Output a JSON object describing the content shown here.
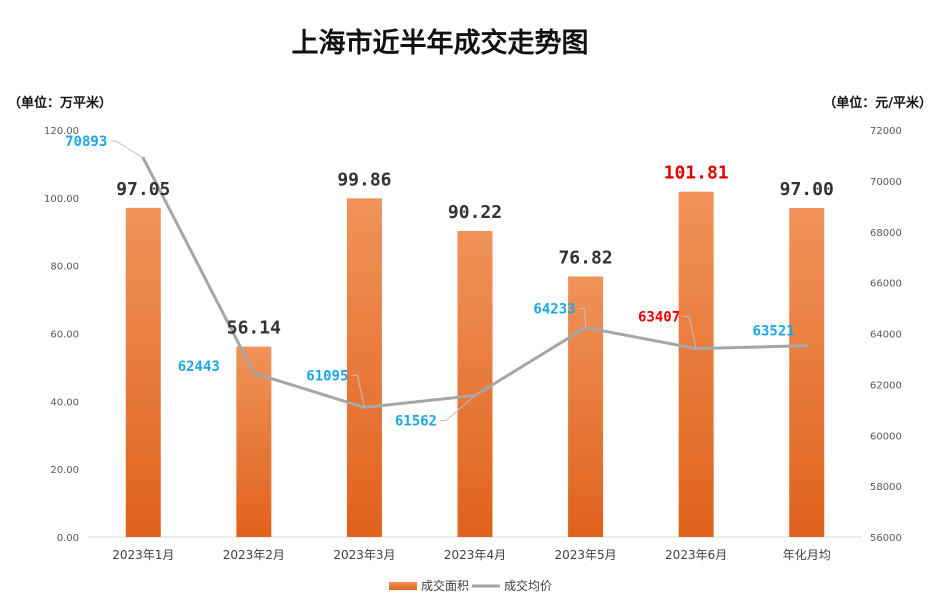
{
  "title": "上海市近半年成交走势图",
  "left_unit": "（单位：万平米）",
  "right_unit": "（单位：元/平米）",
  "colors": {
    "bar_top": "#f0935a",
    "bar_bottom": "#e0621c",
    "line": "#a6a6a6",
    "label_dark": "#333333",
    "label_blue": "#1aa7e6",
    "label_red": "#e60000"
  },
  "legend": {
    "bar_label": "成交面积",
    "line_label": "成交均价"
  },
  "chart_data": {
    "type": "bar",
    "categories": [
      "2023年1月",
      "2023年2月",
      "2023年3月",
      "2023年4月",
      "2023年5月",
      "2023年6月",
      "年化月均"
    ],
    "series": [
      {
        "name": "成交面积",
        "type": "bar",
        "axis": "left",
        "values": [
          97.05,
          56.14,
          99.86,
          90.22,
          76.82,
          101.81,
          97.0
        ],
        "labels": [
          "97.05",
          "56.14",
          "99.86",
          "90.22",
          "76.82",
          "101.81",
          "97.00"
        ],
        "label_colors": [
          "dark",
          "dark",
          "dark",
          "dark",
          "dark",
          "red",
          "dark"
        ]
      },
      {
        "name": "成交均价",
        "type": "line",
        "axis": "right",
        "values": [
          70893,
          62443,
          61095,
          61562,
          64233,
          63407,
          63521
        ],
        "labels": [
          "70893",
          "62443",
          "61095",
          "61562",
          "64233",
          "63407",
          "63521"
        ],
        "label_colors": [
          "blue",
          "blue",
          "blue",
          "blue",
          "blue",
          "red",
          "blue"
        ]
      }
    ],
    "left_axis": {
      "min": 0,
      "max": 120,
      "step": 20,
      "ticks": [
        "0.00",
        "20.00",
        "40.00",
        "60.00",
        "80.00",
        "100.00",
        "120.00"
      ]
    },
    "right_axis": {
      "min": 56000,
      "max": 72000,
      "step": 2000,
      "ticks": [
        "56000",
        "58000",
        "60000",
        "62000",
        "64000",
        "66000",
        "68000",
        "70000",
        "72000"
      ]
    },
    "grid": false,
    "legend_position": "bottom"
  }
}
